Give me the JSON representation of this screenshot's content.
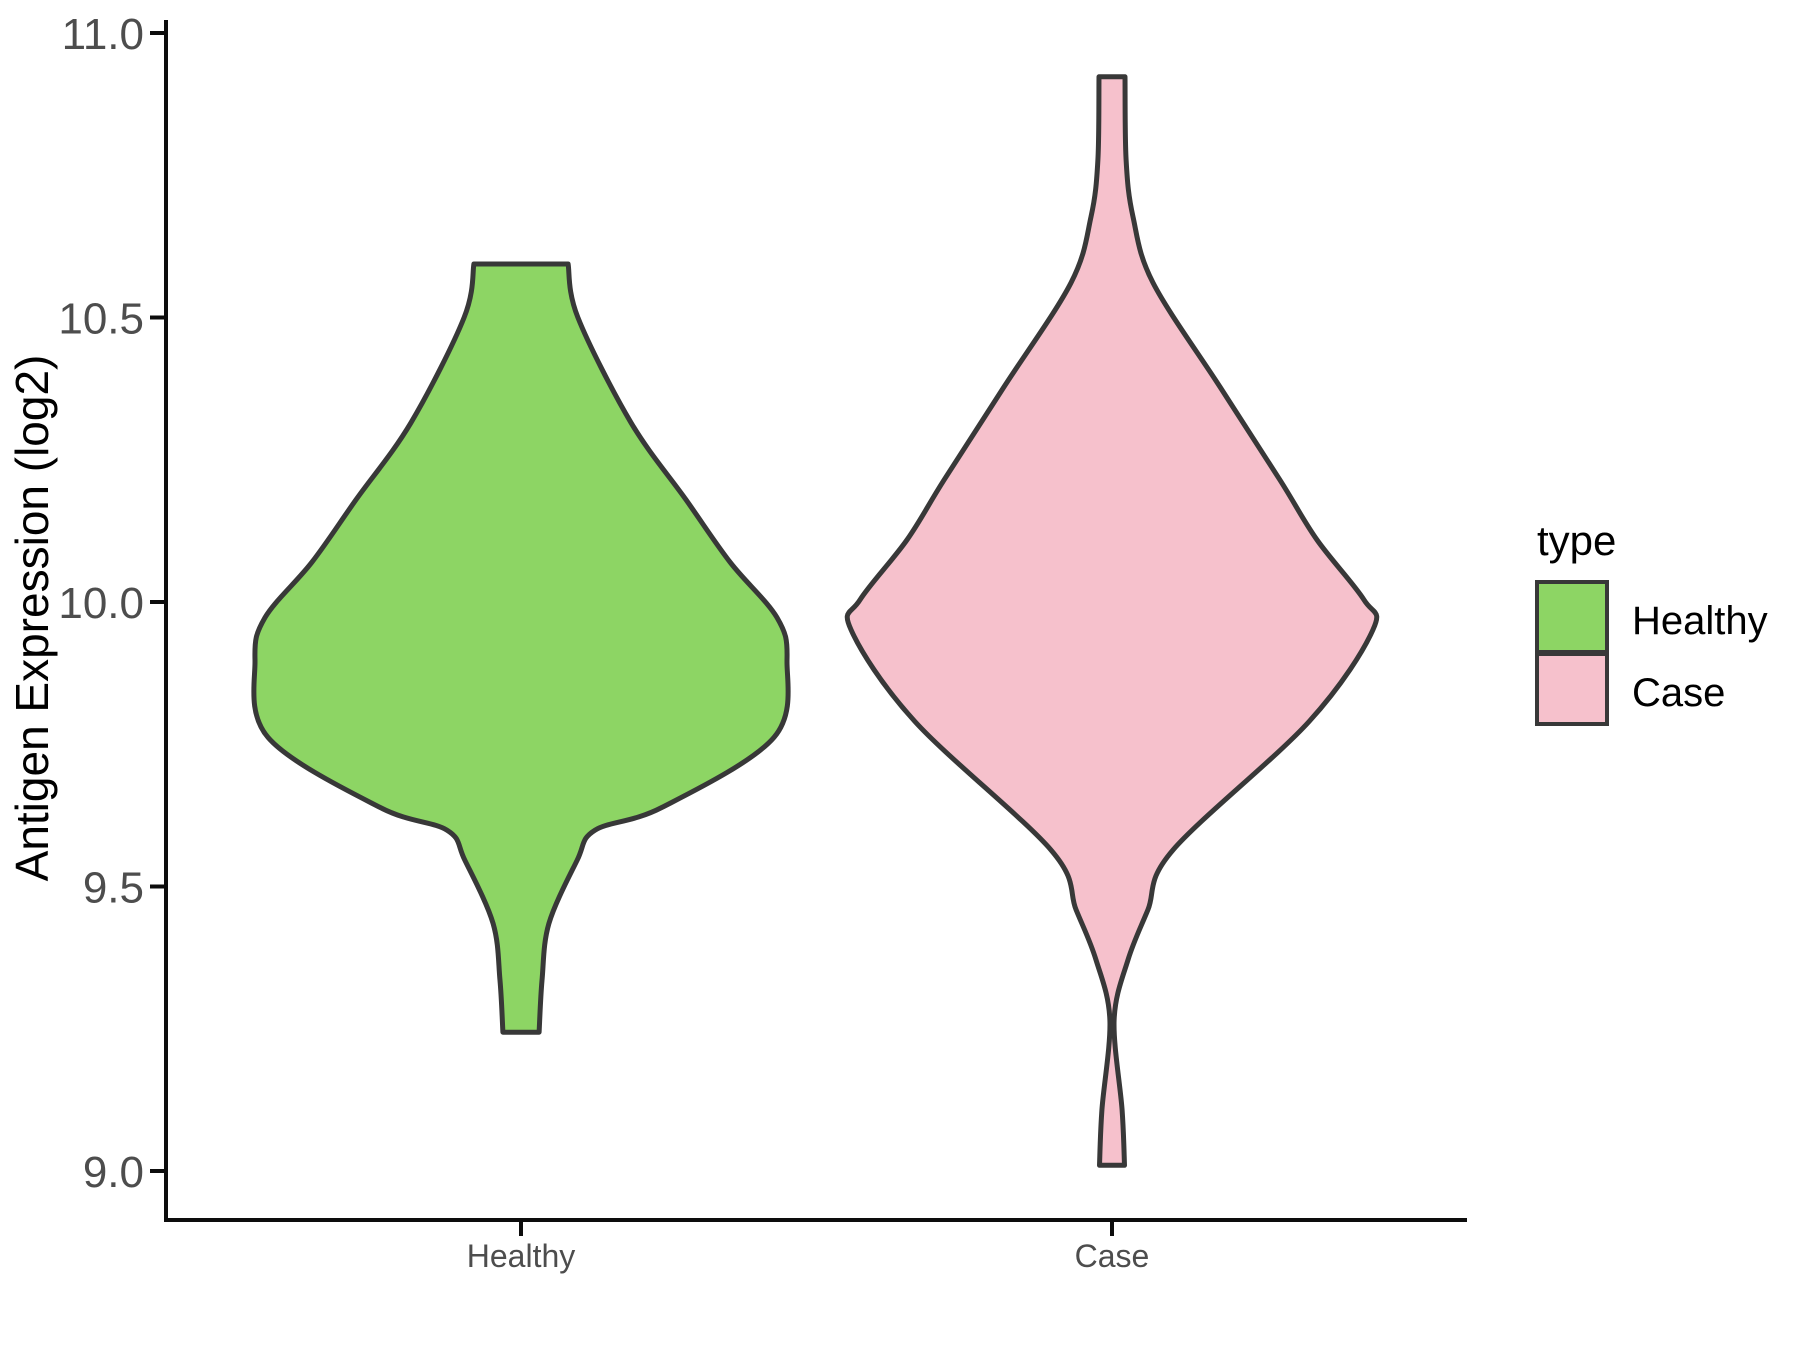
{
  "chart_data": {
    "type": "violin",
    "title": "",
    "xlabel": "",
    "ylabel": "Antigen Expression (log2)",
    "categories": [
      "Healthy",
      "Case"
    ],
    "y_axis": {
      "ticks": [
        "11.0",
        "10.5",
        "10.0",
        "9.5",
        "9.0"
      ],
      "tick_values": [
        11.0,
        10.5,
        10.0,
        9.5,
        9.0
      ],
      "range": [
        8.85,
        11.05
      ],
      "grid": false
    },
    "legend": {
      "title": "type",
      "position": "right",
      "entries": [
        {
          "label": "Healthy",
          "color": "#8DD564"
        },
        {
          "label": "Case",
          "color": "#F6C1CC"
        }
      ]
    },
    "outline_color": "#383838",
    "axis_color": "#0d0d0d",
    "tick_label_color": "#4D4D4D",
    "series": [
      {
        "name": "Healthy",
        "color": "#8DD564",
        "min": 9.24,
        "max": 10.59,
        "peak_density_value": 9.9,
        "truncated_top": true,
        "density_profile": [
          [
            10.594,
            0.177
          ],
          [
            10.5,
            0.214
          ],
          [
            10.315,
            0.414
          ],
          [
            10.18,
            0.62
          ],
          [
            10.07,
            0.786
          ],
          [
            9.973,
            0.962
          ],
          [
            9.898,
            1.0
          ],
          [
            9.762,
            0.951
          ],
          [
            9.639,
            0.53
          ],
          [
            9.599,
            0.278
          ],
          [
            9.546,
            0.211
          ],
          [
            9.435,
            0.105
          ],
          [
            9.335,
            0.079
          ],
          [
            9.244,
            0.068
          ]
        ]
      },
      {
        "name": "Case",
        "color": "#F6C1CC",
        "min": 9.01,
        "max": 10.92,
        "peak_density_value": 9.95,
        "truncated_top": true,
        "density_profile": [
          [
            10.923,
            0.049
          ],
          [
            10.777,
            0.053
          ],
          [
            10.677,
            0.079
          ],
          [
            10.561,
            0.154
          ],
          [
            10.378,
            0.406
          ],
          [
            10.214,
            0.632
          ],
          [
            10.109,
            0.771
          ],
          [
            10.004,
            0.947
          ],
          [
            9.951,
            0.981
          ],
          [
            9.79,
            0.741
          ],
          [
            9.564,
            0.229
          ],
          [
            9.459,
            0.135
          ],
          [
            9.371,
            0.06
          ],
          [
            9.265,
            0.008
          ],
          [
            9.107,
            0.038
          ],
          [
            9.01,
            0.047
          ]
        ]
      }
    ]
  }
}
